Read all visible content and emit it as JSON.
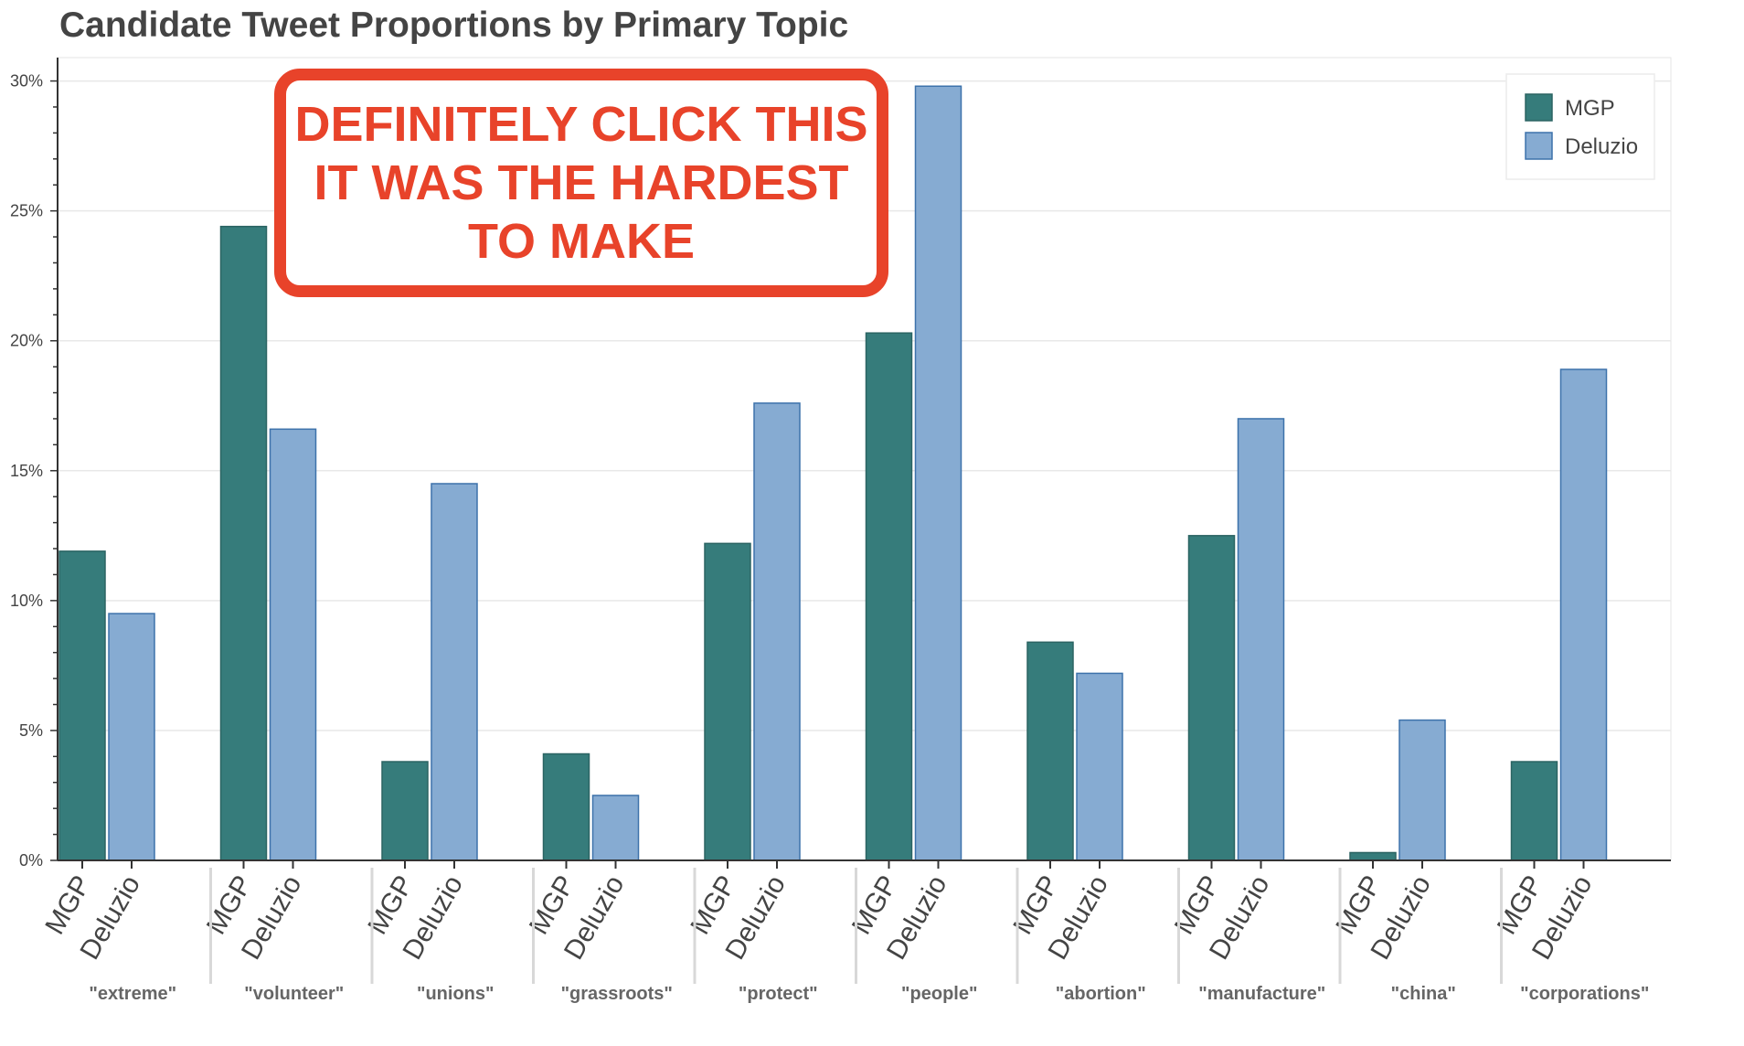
{
  "chart_data": {
    "type": "bar",
    "title": "Candidate Tweet Proportions by Primary Topic",
    "xlabel": "",
    "ylabel": "",
    "ylim": [
      0,
      30.9
    ],
    "y_ticks": [
      0,
      5,
      10,
      15,
      20,
      25,
      30
    ],
    "y_tick_labels": [
      "0%",
      "5%",
      "10%",
      "15%",
      "20%",
      "25%",
      "30%"
    ],
    "y_minor_step": 1,
    "grid": true,
    "legend_position": "top-right",
    "categories": [
      "\"extreme\"",
      "\"volunteer\"",
      "\"unions\"",
      "\"grassroots\"",
      "\"protect\"",
      "\"people\"",
      "\"abortion\"",
      "\"manufacture\"",
      "\"china\"",
      "\"corporations\""
    ],
    "series": [
      {
        "name": "MGP",
        "color": "#367c7b",
        "stroke": "#2b6463",
        "values": [
          11.9,
          24.4,
          3.8,
          4.1,
          12.2,
          20.3,
          8.4,
          12.5,
          0.3,
          3.8
        ]
      },
      {
        "name": "Deluzio",
        "color": "#86abd2",
        "stroke": "#3d72ab",
        "values": [
          9.5,
          16.6,
          14.5,
          2.5,
          17.6,
          29.8,
          7.2,
          17.0,
          5.4,
          18.9
        ]
      }
    ],
    "annotation": "DEFINITELY CLICK THIS\nIT WAS THE HARDEST\nTO MAKE",
    "annotation_color": "#e8432a"
  }
}
